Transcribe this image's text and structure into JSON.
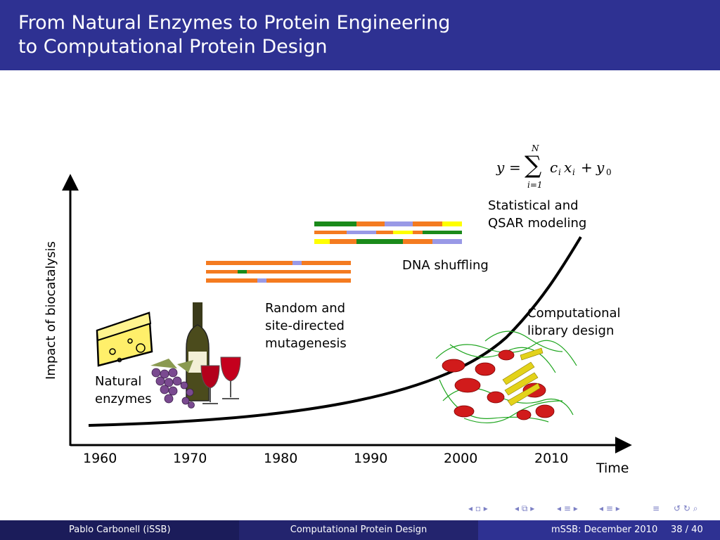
{
  "header": {
    "title_line1": "From Natural Enzymes to Protein Engineering",
    "title_line2": "to Computational Protein Design"
  },
  "diagram": {
    "y_axis_label": "Impact of biocatalysis",
    "x_axis_label": "Time",
    "x_ticks": [
      "1960",
      "1970",
      "1980",
      "1990",
      "2000",
      "2010"
    ],
    "stages": {
      "natural": [
        "Natural",
        "enzymes"
      ],
      "mutagenesis": [
        "Random and",
        "site-directed",
        "mutagenesis"
      ],
      "shuffling": [
        "DNA shuffling"
      ],
      "library": [
        "Computational",
        "library design"
      ],
      "qsar": [
        "Statistical and",
        "QSAR modeling"
      ]
    },
    "formula": {
      "y": "y",
      "eq": "=",
      "N": "N",
      "i1": "i=1",
      "c": "c",
      "x": "x",
      "i": "i",
      "plus": "+",
      "sub0": "0"
    },
    "colors": {
      "orange": "#f47b20",
      "green": "#1a8a1a",
      "lavender": "#9999e6",
      "yellow": "#ffff00",
      "curve": "#000000"
    }
  },
  "footer": {
    "author": "Pablo Carbonell  (iSSB)",
    "talk": "Computational Protein Design",
    "event": "mSSB: December 2010",
    "page": "38 / 40"
  }
}
